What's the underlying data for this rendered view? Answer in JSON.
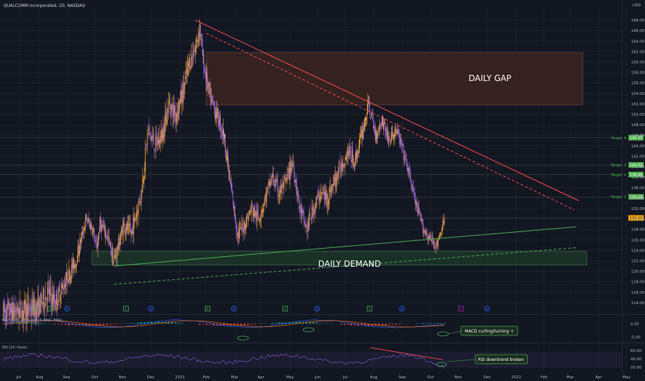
{
  "header": {
    "title": "QUALCOMM Incorporated, 1D, NASDAQ",
    "currency": "USD"
  },
  "colors": {
    "bg": "#131722",
    "grid": "#1e222d",
    "up": "#e8a33d",
    "down": "#9c6ad8",
    "resistance": "#ff4d4d",
    "support": "#4caf50",
    "demand_fill": "#1e3a2a",
    "gap_fill": "#3a2420",
    "target": "#4caf50",
    "price_tag": "#f7a600",
    "macd_line": "#2962ff",
    "macd_signal": "#ff6d00",
    "rsi_line": "#7e57c2"
  },
  "labels": {
    "daily_gap": "DAILY GAP",
    "daily_demand": "DAILY DEMAND",
    "macd_title": "MACD (12, 26, close, 9, EMA, EMA)",
    "macd_note": "MACD curling/turning +",
    "rsi_title": "RSI (14, close)",
    "rsi_note": "RSI downtrend broken"
  },
  "chart_data": [
    {
      "type": "candlestick",
      "title": "QUALCOMM Incorporated, 1D, NASDAQ",
      "ylim": [
        112,
        170
      ],
      "y_ticks": [
        114,
        116,
        118,
        120,
        122,
        124,
        126,
        128,
        130,
        132,
        134,
        136,
        138,
        140,
        142,
        144,
        146,
        148,
        150,
        152,
        154,
        156,
        158,
        160,
        162,
        164,
        166,
        168
      ],
      "x_ticks": [
        "Jul",
        "Aug",
        "Sep",
        "Oct",
        "Nov",
        "Dec",
        "2021",
        "Feb",
        "Mar",
        "Apr",
        "May",
        "Jun",
        "Jul",
        "Aug",
        "Sep",
        "Oct",
        "Nov",
        "Dec",
        "2022",
        "Feb",
        "Mar",
        "Apr",
        "May"
      ],
      "price_path": [
        [
          0,
          112
        ],
        [
          5,
          112.5
        ],
        [
          10,
          113
        ],
        [
          13,
          116
        ],
        [
          15,
          114
        ],
        [
          18,
          118
        ],
        [
          21,
          122
        ],
        [
          24,
          130
        ],
        [
          26,
          128
        ],
        [
          27,
          124
        ],
        [
          28,
          129
        ],
        [
          30,
          127
        ],
        [
          32,
          122
        ],
        [
          33,
          124
        ],
        [
          35,
          129
        ],
        [
          37,
          127
        ],
        [
          40,
          135
        ],
        [
          42,
          147
        ],
        [
          44,
          144
        ],
        [
          46,
          146
        ],
        [
          48,
          152
        ],
        [
          50,
          150
        ],
        [
          52,
          154
        ],
        [
          54,
          160
        ],
        [
          56,
          163
        ],
        [
          57,
          167
        ],
        [
          58,
          160
        ],
        [
          60,
          153
        ],
        [
          62,
          150
        ],
        [
          64,
          146
        ],
        [
          66,
          136
        ],
        [
          68,
          127
        ],
        [
          70,
          129
        ],
        [
          72,
          132
        ],
        [
          74,
          130
        ],
        [
          76,
          134
        ],
        [
          78,
          138
        ],
        [
          80,
          135
        ],
        [
          82,
          137
        ],
        [
          84,
          141
        ],
        [
          86,
          132
        ],
        [
          88,
          128
        ],
        [
          90,
          132
        ],
        [
          92,
          135
        ],
        [
          94,
          134
        ],
        [
          96,
          137
        ],
        [
          98,
          140
        ],
        [
          100,
          143
        ],
        [
          102,
          141
        ],
        [
          104,
          146
        ],
        [
          106,
          152
        ],
        [
          108,
          146
        ],
        [
          110,
          149
        ],
        [
          112,
          145
        ],
        [
          114,
          147
        ],
        [
          116,
          143
        ],
        [
          118,
          138
        ],
        [
          120,
          132
        ],
        [
          122,
          128
        ],
        [
          124,
          126
        ],
        [
          126,
          125
        ],
        [
          128,
          130
        ]
      ],
      "volatility": [
        [
          0,
          3
        ],
        [
          13,
          3
        ],
        [
          24,
          1.5
        ],
        [
          40,
          2.5
        ],
        [
          58,
          2.5
        ],
        [
          66,
          2
        ],
        [
          104,
          2
        ],
        [
          120,
          1.5
        ],
        [
          128,
          1.2
        ]
      ],
      "timeline": [
        [
          0,
          "Jul"
        ],
        [
          128,
          "Oct"
        ]
      ],
      "horizontal_levels": [
        {
          "label": "Target 4",
          "value": 145.53
        },
        {
          "label": "Target 3",
          "value": 140.33
        },
        {
          "label": "Target 2",
          "value": 138.49
        },
        {
          "label": "Target 1",
          "value": 134.23
        }
      ],
      "current_price": 130.2,
      "last_price_tag": "130.20",
      "zones": [
        {
          "name": "DAILY GAP",
          "ymin": 151.8,
          "ymax": 161.8,
          "from": "Feb",
          "to": "Mar"
        },
        {
          "name": "DAILY DEMAND",
          "ymin": 121.2,
          "ymax": 123.8,
          "from": "Oct",
          "to": "Mar"
        }
      ],
      "trendlines": [
        {
          "kind": "resistance",
          "style": "solid",
          "points": [
            [
              "Feb",
              168
            ],
            [
              "Mar",
              133.5
            ]
          ]
        },
        {
          "kind": "resistance",
          "style": "dashed",
          "points": [
            [
              "Feb",
              165.5
            ],
            [
              "Mar",
              131.7
            ]
          ]
        },
        {
          "kind": "support",
          "style": "solid",
          "points": [
            [
              "Oct",
              121
            ],
            [
              "Mar",
              128.5
            ]
          ]
        },
        {
          "kind": "support",
          "style": "dashed",
          "points": [
            [
              "Nov",
              117.5
            ],
            [
              "Mar",
              124.5
            ]
          ]
        }
      ]
    },
    {
      "type": "line",
      "title": "MACD (12, 26, close, 9, EMA, EMA)",
      "ylim": [
        -7,
        3
      ],
      "y_ticks": [
        "0.00",
        "-5.00"
      ],
      "annotation": "MACD curling/turning +"
    },
    {
      "type": "line",
      "title": "RSI (14, close)",
      "ylim": [
        20,
        90
      ],
      "y_ticks": [
        "60.00",
        "40.00",
        "20.00"
      ],
      "annotation": "RSI downtrend broken",
      "trendlines": [
        {
          "kind": "resistance",
          "style": "solid",
          "points": [
            [
              "Aug",
              80
            ],
            [
              "Oct",
              33
            ]
          ]
        }
      ]
    }
  ]
}
